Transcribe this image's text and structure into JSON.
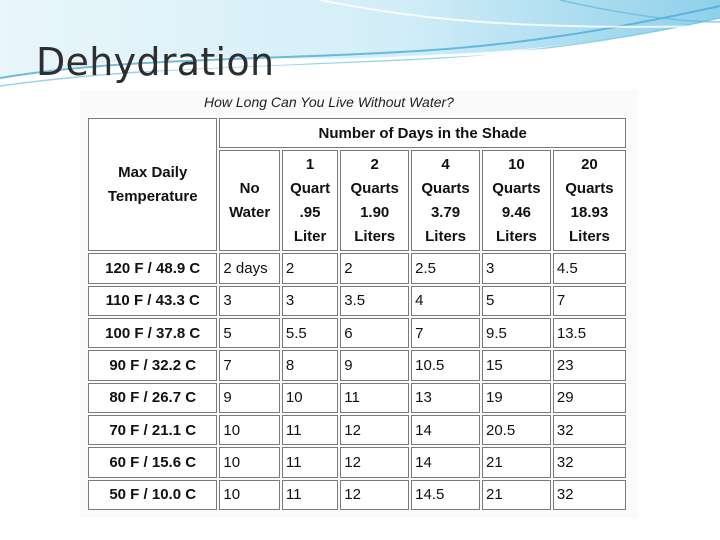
{
  "slide": {
    "title": "Dehydration"
  },
  "table": {
    "caption": "How Long Can You Live Without Water?",
    "group_header": "Number of Days in the Shade",
    "corner_header": [
      "Max Daily",
      "Temperature"
    ],
    "columns": [
      [
        "No",
        "Water"
      ],
      [
        "1",
        "Quart",
        ".95",
        "Liter"
      ],
      [
        "2",
        "Quarts",
        "1.90",
        "Liters"
      ],
      [
        "4",
        "Quarts",
        "3.79",
        "Liters"
      ],
      [
        "10",
        "Quarts",
        "9.46",
        "Liters"
      ],
      [
        "20",
        "Quarts",
        "18.93",
        "Liters"
      ]
    ],
    "rows": [
      {
        "temp": "120 F / 48.9 C",
        "values": [
          "2 days",
          "2",
          "2",
          "2.5",
          "3",
          "4.5"
        ]
      },
      {
        "temp": "110 F / 43.3 C",
        "values": [
          "3",
          "3",
          "3.5",
          "4",
          "5",
          "7"
        ]
      },
      {
        "temp": "100 F / 37.8 C",
        "values": [
          "5",
          "5.5",
          "6",
          "7",
          "9.5",
          "13.5"
        ]
      },
      {
        "temp": "90 F / 32.2 C",
        "values": [
          "7",
          "8",
          "9",
          "10.5",
          "15",
          "23"
        ]
      },
      {
        "temp": "80 F / 26.7 C",
        "values": [
          "9",
          "10",
          "11",
          "13",
          "19",
          "29"
        ]
      },
      {
        "temp": "70 F / 21.1 C",
        "values": [
          "10",
          "11",
          "12",
          "14",
          "20.5",
          "32"
        ]
      },
      {
        "temp": "60 F / 15.6 C",
        "values": [
          "10",
          "11",
          "12",
          "14",
          "21",
          "32"
        ]
      },
      {
        "temp": "50 F / 10.0 C",
        "values": [
          "10",
          "11",
          "12",
          "14.5",
          "21",
          "32"
        ]
      }
    ]
  },
  "colors": {
    "banner_light": "#d8eef8",
    "banner_mid": "#8fd0ea",
    "banner_dark": "#4aaed6",
    "title": "#2e2e2e"
  }
}
